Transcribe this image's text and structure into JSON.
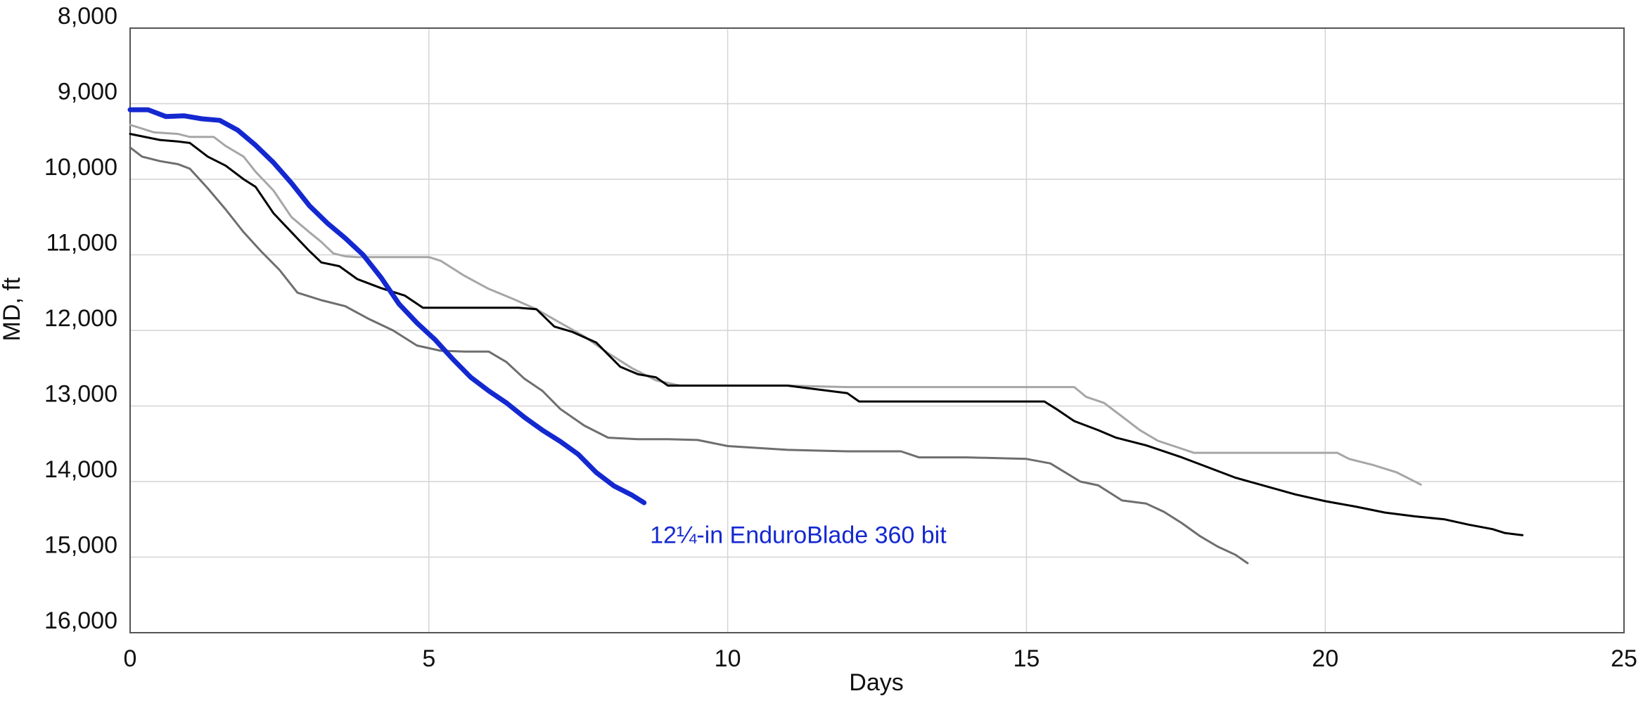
{
  "chart_data": {
    "type": "line",
    "xlabel": "Days",
    "ylabel": "MD, ft",
    "xlim": [
      0,
      25
    ],
    "ylim": [
      8000,
      16000
    ],
    "y_inverted": true,
    "grid": true,
    "x_ticks": [
      0,
      5,
      10,
      15,
      20,
      25
    ],
    "x_tick_labels": [
      "0",
      "5",
      "10",
      "15",
      "20",
      "25"
    ],
    "y_ticks": [
      8000,
      9000,
      10000,
      11000,
      12000,
      13000,
      14000,
      15000,
      16000
    ],
    "y_tick_labels": [
      "8,000",
      "9,000",
      "10,000",
      "11,000",
      "12,000",
      "13,000",
      "14,000",
      "15,000",
      "16,000"
    ],
    "annotation": {
      "text": "12¼-in EnduroBlade 360 bit",
      "color": "#1428d0",
      "x": 8.7,
      "y": 14700
    },
    "series": [
      {
        "color": "#a6a6a6",
        "width": 3,
        "points": [
          [
            0,
            9280
          ],
          [
            0.4,
            9380
          ],
          [
            0.8,
            9400
          ],
          [
            1.0,
            9440
          ],
          [
            1.4,
            9440
          ],
          [
            1.6,
            9560
          ],
          [
            1.9,
            9700
          ],
          [
            2.1,
            9900
          ],
          [
            2.4,
            10150
          ],
          [
            2.7,
            10500
          ],
          [
            3.0,
            10700
          ],
          [
            3.2,
            10830
          ],
          [
            3.4,
            10980
          ],
          [
            3.6,
            11020
          ],
          [
            3.8,
            11030
          ],
          [
            4.5,
            11030
          ],
          [
            5.0,
            11030
          ],
          [
            5.2,
            11080
          ],
          [
            5.6,
            11280
          ],
          [
            6.0,
            11450
          ],
          [
            6.4,
            11580
          ],
          [
            6.8,
            11720
          ],
          [
            7.2,
            11900
          ],
          [
            7.6,
            12080
          ],
          [
            8.0,
            12300
          ],
          [
            8.4,
            12500
          ],
          [
            8.8,
            12660
          ],
          [
            9.2,
            12730
          ],
          [
            10.0,
            12730
          ],
          [
            11.0,
            12730
          ],
          [
            12.0,
            12750
          ],
          [
            13.0,
            12750
          ],
          [
            14.0,
            12750
          ],
          [
            15.0,
            12750
          ],
          [
            15.8,
            12750
          ],
          [
            16.0,
            12880
          ],
          [
            16.3,
            12960
          ],
          [
            16.6,
            13140
          ],
          [
            16.9,
            13320
          ],
          [
            17.2,
            13460
          ],
          [
            17.5,
            13540
          ],
          [
            17.8,
            13620
          ],
          [
            18.5,
            13620
          ],
          [
            19.5,
            13620
          ],
          [
            20.2,
            13620
          ],
          [
            20.4,
            13700
          ],
          [
            20.8,
            13780
          ],
          [
            21.2,
            13880
          ],
          [
            21.6,
            14040
          ]
        ]
      },
      {
        "color": "#000000",
        "width": 3,
        "points": [
          [
            0,
            9400
          ],
          [
            0.5,
            9480
          ],
          [
            0.8,
            9500
          ],
          [
            1.0,
            9520
          ],
          [
            1.3,
            9700
          ],
          [
            1.6,
            9820
          ],
          [
            1.9,
            10000
          ],
          [
            2.1,
            10100
          ],
          [
            2.4,
            10450
          ],
          [
            2.7,
            10700
          ],
          [
            3.0,
            10950
          ],
          [
            3.2,
            11100
          ],
          [
            3.5,
            11150
          ],
          [
            3.8,
            11320
          ],
          [
            4.2,
            11440
          ],
          [
            4.6,
            11540
          ],
          [
            4.9,
            11700
          ],
          [
            5.5,
            11700
          ],
          [
            6.0,
            11700
          ],
          [
            6.5,
            11700
          ],
          [
            6.8,
            11720
          ],
          [
            7.1,
            11950
          ],
          [
            7.4,
            12020
          ],
          [
            7.8,
            12160
          ],
          [
            8.0,
            12320
          ],
          [
            8.2,
            12480
          ],
          [
            8.5,
            12580
          ],
          [
            8.8,
            12620
          ],
          [
            9.0,
            12730
          ],
          [
            9.5,
            12730
          ],
          [
            10.0,
            12730
          ],
          [
            11.0,
            12730
          ],
          [
            11.5,
            12780
          ],
          [
            12.0,
            12830
          ],
          [
            12.2,
            12940
          ],
          [
            13.0,
            12940
          ],
          [
            14.0,
            12940
          ],
          [
            15.0,
            12940
          ],
          [
            15.3,
            12940
          ],
          [
            15.5,
            13040
          ],
          [
            15.8,
            13200
          ],
          [
            16.2,
            13320
          ],
          [
            16.5,
            13420
          ],
          [
            17.0,
            13520
          ],
          [
            17.6,
            13680
          ],
          [
            18.0,
            13800
          ],
          [
            18.5,
            13950
          ],
          [
            19.0,
            14060
          ],
          [
            19.5,
            14170
          ],
          [
            20.0,
            14260
          ],
          [
            20.5,
            14330
          ],
          [
            21.0,
            14410
          ],
          [
            21.5,
            14460
          ],
          [
            22.0,
            14500
          ],
          [
            22.4,
            14570
          ],
          [
            22.8,
            14630
          ],
          [
            23.0,
            14680
          ],
          [
            23.3,
            14710
          ]
        ]
      },
      {
        "color": "#6e6e6e",
        "width": 3,
        "points": [
          [
            0,
            9580
          ],
          [
            0.2,
            9700
          ],
          [
            0.5,
            9760
          ],
          [
            0.8,
            9800
          ],
          [
            1.0,
            9860
          ],
          [
            1.3,
            10120
          ],
          [
            1.6,
            10400
          ],
          [
            1.9,
            10700
          ],
          [
            2.2,
            10960
          ],
          [
            2.5,
            11200
          ],
          [
            2.8,
            11500
          ],
          [
            3.2,
            11600
          ],
          [
            3.6,
            11680
          ],
          [
            4.0,
            11850
          ],
          [
            4.4,
            12000
          ],
          [
            4.8,
            12200
          ],
          [
            5.2,
            12270
          ],
          [
            5.6,
            12280
          ],
          [
            6.0,
            12280
          ],
          [
            6.3,
            12420
          ],
          [
            6.6,
            12640
          ],
          [
            6.9,
            12800
          ],
          [
            7.2,
            13040
          ],
          [
            7.6,
            13260
          ],
          [
            8.0,
            13420
          ],
          [
            8.5,
            13440
          ],
          [
            9.0,
            13440
          ],
          [
            9.5,
            13450
          ],
          [
            10.0,
            13530
          ],
          [
            11.0,
            13580
          ],
          [
            12.0,
            13600
          ],
          [
            12.9,
            13600
          ],
          [
            13.2,
            13680
          ],
          [
            14.0,
            13680
          ],
          [
            15.0,
            13700
          ],
          [
            15.4,
            13760
          ],
          [
            15.9,
            14000
          ],
          [
            16.2,
            14050
          ],
          [
            16.6,
            14250
          ],
          [
            17.0,
            14290
          ],
          [
            17.3,
            14400
          ],
          [
            17.6,
            14550
          ],
          [
            17.9,
            14720
          ],
          [
            18.2,
            14860
          ],
          [
            18.5,
            14970
          ],
          [
            18.7,
            15080
          ]
        ]
      },
      {
        "color": "#1428d0",
        "width": 7,
        "points": [
          [
            0,
            9080
          ],
          [
            0.3,
            9080
          ],
          [
            0.6,
            9170
          ],
          [
            0.9,
            9160
          ],
          [
            1.2,
            9200
          ],
          [
            1.5,
            9220
          ],
          [
            1.8,
            9350
          ],
          [
            2.1,
            9550
          ],
          [
            2.4,
            9780
          ],
          [
            2.7,
            10050
          ],
          [
            3.0,
            10350
          ],
          [
            3.3,
            10580
          ],
          [
            3.6,
            10780
          ],
          [
            3.9,
            11000
          ],
          [
            4.2,
            11300
          ],
          [
            4.5,
            11650
          ],
          [
            4.8,
            11900
          ],
          [
            5.1,
            12120
          ],
          [
            5.4,
            12380
          ],
          [
            5.7,
            12620
          ],
          [
            6.0,
            12800
          ],
          [
            6.3,
            12960
          ],
          [
            6.6,
            13150
          ],
          [
            6.9,
            13320
          ],
          [
            7.2,
            13470
          ],
          [
            7.5,
            13640
          ],
          [
            7.8,
            13880
          ],
          [
            8.1,
            14060
          ],
          [
            8.4,
            14180
          ],
          [
            8.6,
            14280
          ]
        ]
      }
    ]
  }
}
